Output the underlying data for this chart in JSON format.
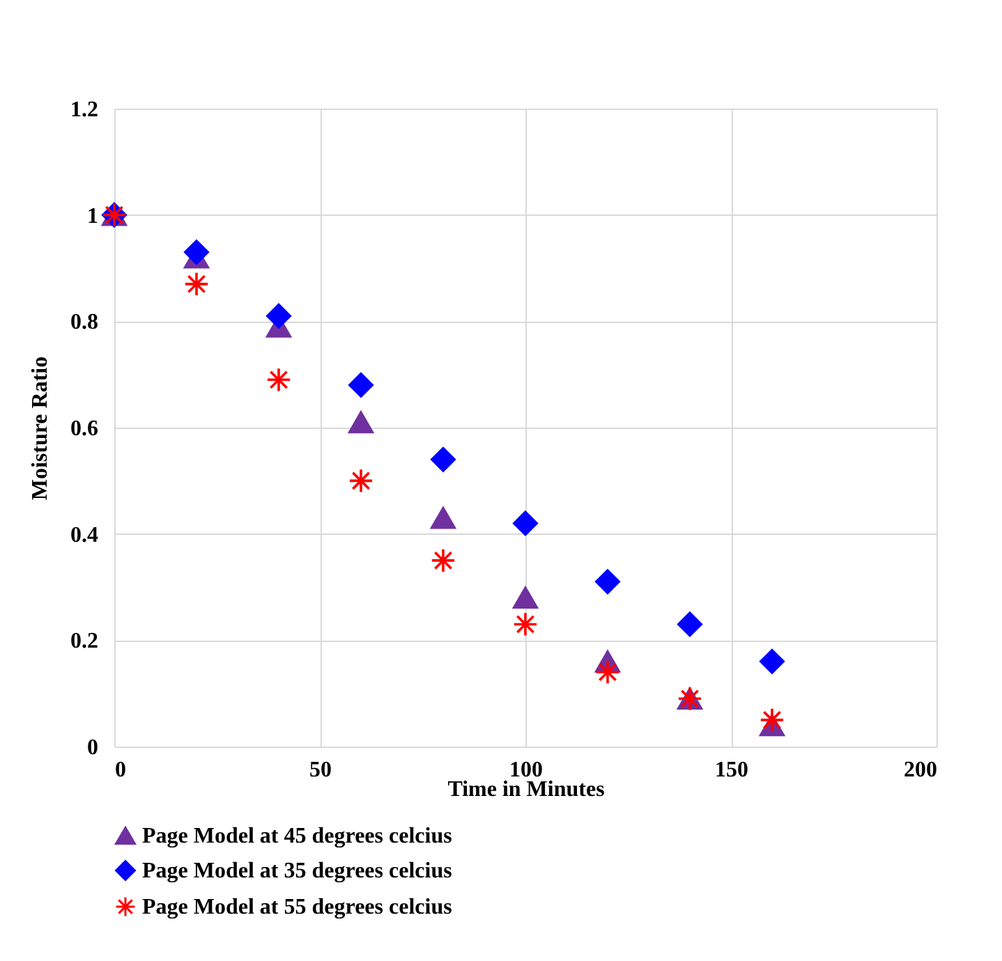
{
  "chart_data": {
    "type": "scatter",
    "xlabel": "Time in Minutes",
    "ylabel": "Moisture Ratio",
    "x": [
      0,
      20,
      40,
      60,
      80,
      100,
      120,
      140,
      160
    ],
    "series": [
      {
        "name": "Page Model at 45 degrees celcius",
        "color": "#7030a0",
        "marker": "triangle",
        "values": [
          1.0,
          0.92,
          0.79,
          0.61,
          0.43,
          0.28,
          0.16,
          0.09,
          0.04
        ]
      },
      {
        "name": "Page Model at 35 degrees celcius",
        "color": "#0000ff",
        "marker": "diamond",
        "values": [
          1.0,
          0.93,
          0.81,
          0.68,
          0.54,
          0.42,
          0.31,
          0.23,
          0.16
        ]
      },
      {
        "name": "Page Model at 55 degrees celcius",
        "color": "#ff0000",
        "marker": "cross",
        "values": [
          1.0,
          0.87,
          0.69,
          0.5,
          0.35,
          0.23,
          0.14,
          0.09,
          0.05
        ]
      }
    ],
    "xlim": [
      0,
      200
    ],
    "xticks": [
      0,
      50,
      100,
      150,
      200
    ],
    "ylim": [
      0,
      1.2
    ],
    "yticks": [
      0,
      0.2,
      0.4,
      0.6,
      0.8,
      1,
      1.2
    ],
    "grid": true,
    "legend": "bottom"
  }
}
